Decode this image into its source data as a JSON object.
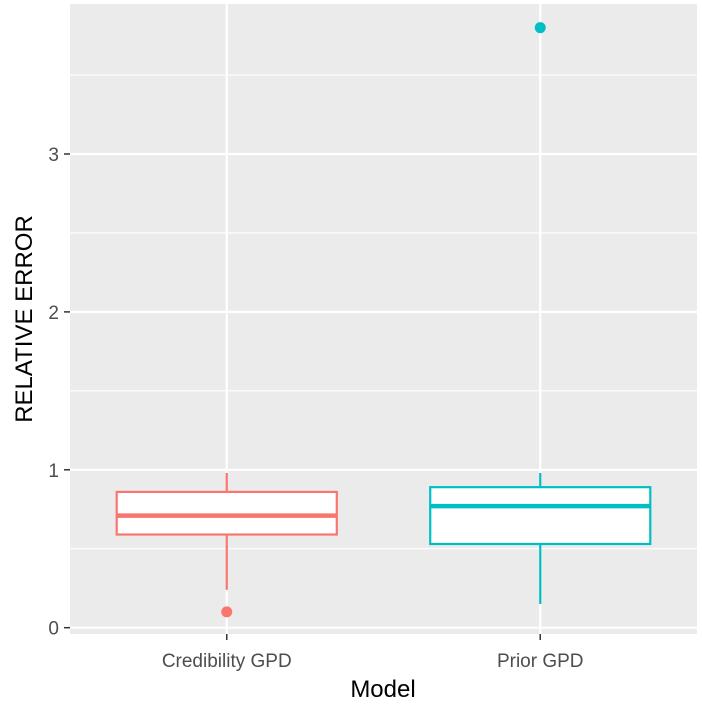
{
  "chart_data": {
    "type": "boxplot",
    "xlabel": "Model",
    "ylabel": "RELATIVE ERROR",
    "ylim": [
      -0.04,
      3.95
    ],
    "y_ticks": [
      0,
      1,
      2,
      3
    ],
    "y_tick_labels": [
      "0",
      "1",
      "2",
      "3"
    ],
    "categories": [
      "Credibility GPD",
      "Prior GPD"
    ],
    "series": [
      {
        "category": "Credibility GPD",
        "color": "#F8766D",
        "whisker_low": 0.24,
        "q1": 0.59,
        "median": 0.71,
        "q3": 0.86,
        "whisker_high": 0.98,
        "outliers": [
          0.1
        ]
      },
      {
        "category": "Prior GPD",
        "color": "#00BFC4",
        "whisker_low": 0.15,
        "q1": 0.53,
        "median": 0.77,
        "q3": 0.89,
        "whisker_high": 0.98,
        "outliers": [
          3.8
        ]
      }
    ],
    "panel_background": "#EBEBEB",
    "grid": true,
    "legend": "none"
  }
}
